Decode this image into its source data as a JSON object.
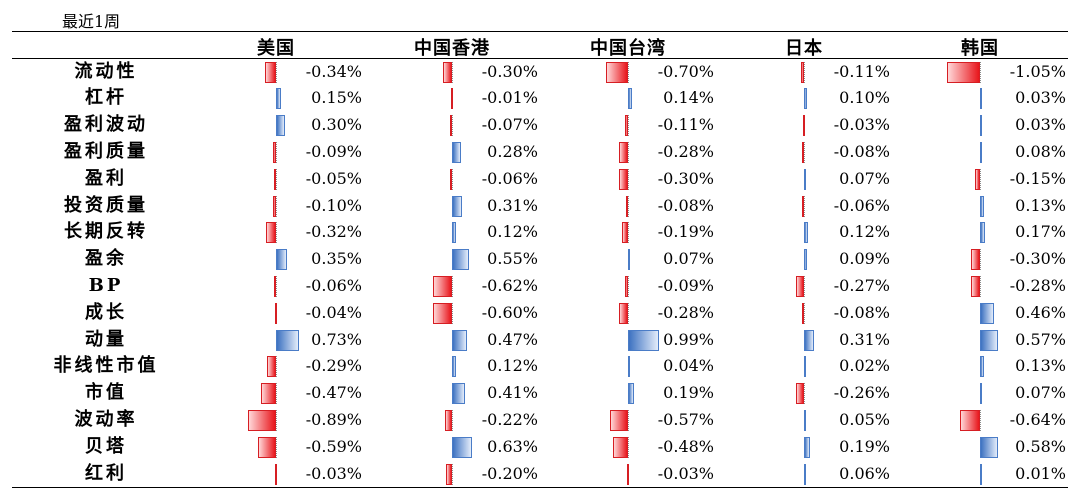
{
  "period_label": "最近1周",
  "countries": [
    "美国",
    "中国香港",
    "中国台湾",
    "日本",
    "韩国"
  ],
  "rows": [
    {
      "factor": "流动性",
      "values": [
        -0.34,
        -0.3,
        -0.7,
        -0.11,
        -1.05
      ],
      "labels": [
        "-0.34%",
        "-0.30%",
        "-0.70%",
        "-0.11%",
        "-1.05%"
      ]
    },
    {
      "factor": "杠杆",
      "values": [
        0.15,
        -0.01,
        0.14,
        0.1,
        0.03
      ],
      "labels": [
        "0.15%",
        "-0.01%",
        "0.14%",
        "0.10%",
        "0.03%"
      ]
    },
    {
      "factor": "盈利波动",
      "values": [
        0.3,
        -0.07,
        -0.11,
        -0.03,
        0.03
      ],
      "labels": [
        "0.30%",
        "-0.07%",
        "-0.11%",
        "-0.03%",
        "0.03%"
      ]
    },
    {
      "factor": "盈利质量",
      "values": [
        -0.09,
        0.28,
        -0.28,
        -0.08,
        0.08
      ],
      "labels": [
        "-0.09%",
        "0.28%",
        "-0.28%",
        "-0.08%",
        "0.08%"
      ]
    },
    {
      "factor": "盈利",
      "values": [
        -0.05,
        -0.06,
        -0.3,
        0.07,
        -0.15
      ],
      "labels": [
        "-0.05%",
        "-0.06%",
        "-0.30%",
        "0.07%",
        "-0.15%"
      ]
    },
    {
      "factor": "投资质量",
      "values": [
        -0.1,
        0.31,
        -0.08,
        -0.06,
        0.13
      ],
      "labels": [
        "-0.10%",
        "0.31%",
        "-0.08%",
        "-0.06%",
        "0.13%"
      ]
    },
    {
      "factor": "长期反转",
      "values": [
        -0.32,
        0.12,
        -0.19,
        0.12,
        0.17
      ],
      "labels": [
        "-0.32%",
        "0.12%",
        "-0.19%",
        "0.12%",
        "0.17%"
      ]
    },
    {
      "factor": "盈余",
      "values": [
        0.35,
        0.55,
        0.07,
        0.09,
        -0.3
      ],
      "labels": [
        "0.35%",
        "0.55%",
        "0.07%",
        "0.09%",
        "-0.30%"
      ]
    },
    {
      "factor": "BP",
      "values": [
        -0.06,
        -0.62,
        -0.09,
        -0.27,
        -0.28
      ],
      "labels": [
        "-0.06%",
        "-0.62%",
        "-0.09%",
        "-0.27%",
        "-0.28%"
      ]
    },
    {
      "factor": "成长",
      "values": [
        -0.04,
        -0.6,
        -0.28,
        -0.08,
        0.46
      ],
      "labels": [
        "-0.04%",
        "-0.60%",
        "-0.28%",
        "-0.08%",
        "0.46%"
      ]
    },
    {
      "factor": "动量",
      "values": [
        0.73,
        0.47,
        0.99,
        0.31,
        0.57
      ],
      "labels": [
        "0.73%",
        "0.47%",
        "0.99%",
        "0.31%",
        "0.57%"
      ]
    },
    {
      "factor": "非线性市值",
      "values": [
        -0.29,
        0.12,
        0.04,
        0.02,
        0.13
      ],
      "labels": [
        "-0.29%",
        "0.12%",
        "0.04%",
        "0.02%",
        "0.13%"
      ]
    },
    {
      "factor": "市值",
      "values": [
        -0.47,
        0.41,
        0.19,
        -0.26,
        0.07
      ],
      "labels": [
        "-0.47%",
        "0.41%",
        "0.19%",
        "-0.26%",
        "0.07%"
      ]
    },
    {
      "factor": "波动率",
      "values": [
        -0.89,
        -0.22,
        -0.57,
        0.05,
        -0.64
      ],
      "labels": [
        "-0.89%",
        "-0.22%",
        "-0.57%",
        "0.05%",
        "-0.64%"
      ]
    },
    {
      "factor": "贝塔",
      "values": [
        -0.59,
        0.63,
        -0.48,
        0.19,
        0.58
      ],
      "labels": [
        "-0.59%",
        "0.63%",
        "-0.48%",
        "0.19%",
        "0.58%"
      ]
    },
    {
      "factor": "红利",
      "values": [
        -0.03,
        -0.2,
        -0.03,
        0.06,
        0.01
      ],
      "labels": [
        "-0.03%",
        "-0.20%",
        "-0.03%",
        "0.06%",
        "0.01%"
      ]
    }
  ],
  "colors": {
    "negative": "#e8161c",
    "positive": "#3d72c1"
  }
}
